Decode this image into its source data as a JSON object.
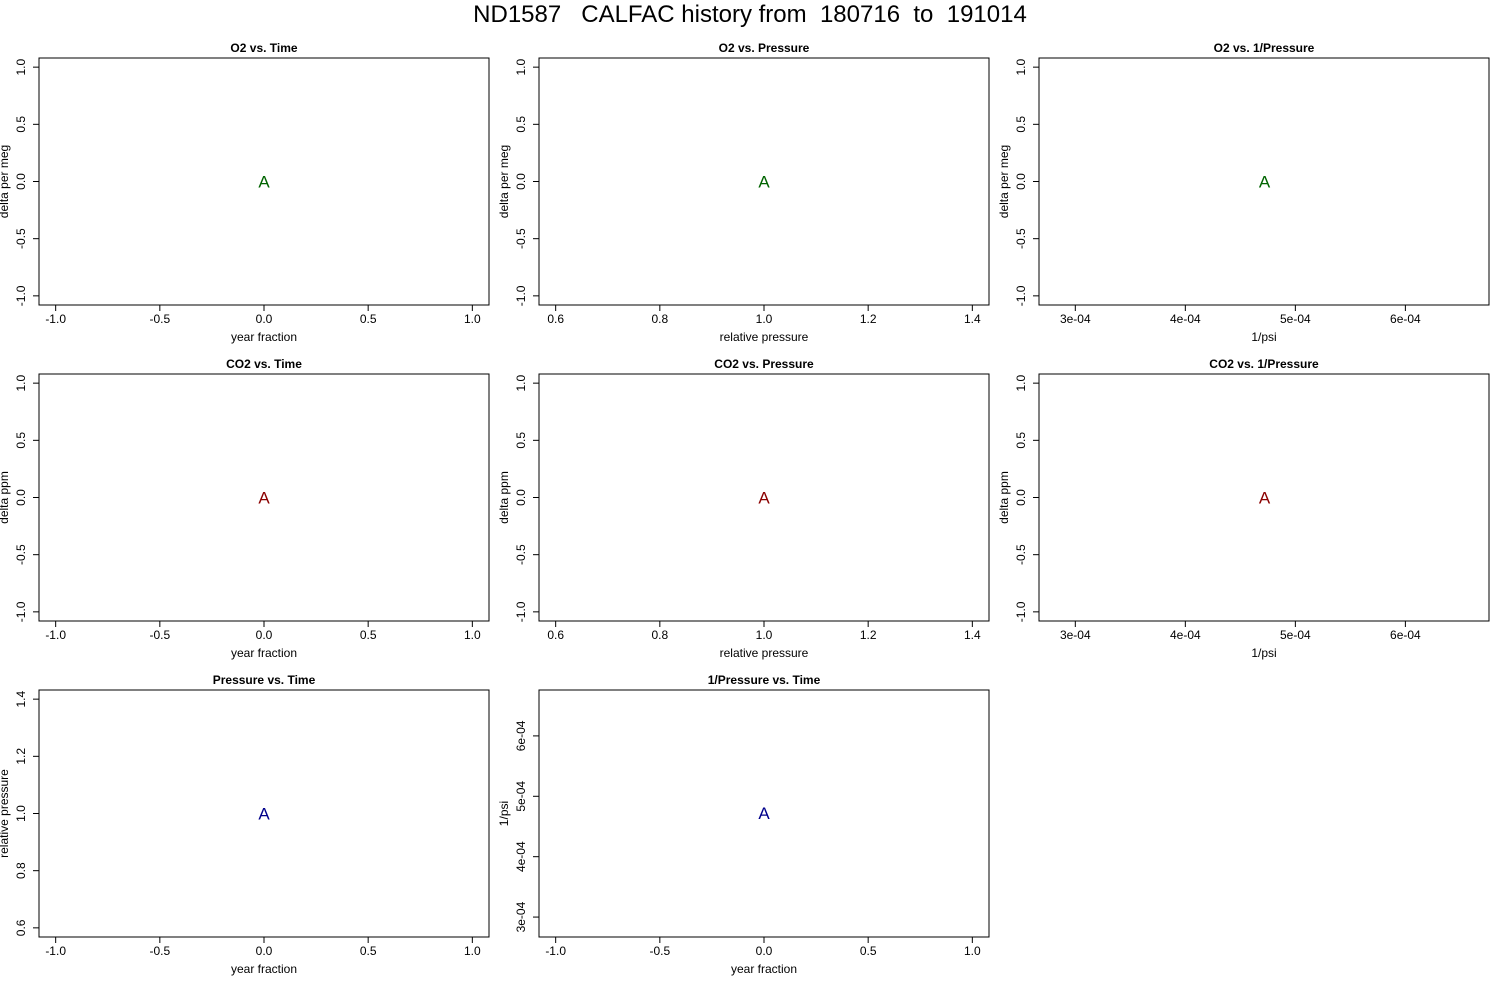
{
  "page_title": "ND1587   CALFAC history from  180716  to  191014",
  "colors": {
    "o2": "#006400",
    "co2": "#8b0000",
    "pressure": "#00008b",
    "axis": "#000000"
  },
  "chart_data": [
    {
      "type": "scatter",
      "title": "O2 vs. Time",
      "xlabel": "year fraction",
      "ylabel": "delta per meg",
      "xlim": [
        -1.08,
        1.08
      ],
      "ylim": [
        -1.08,
        1.08
      ],
      "xticks": [
        -1.0,
        -0.5,
        0.0,
        0.5,
        1.0
      ],
      "xtick_labels": [
        "-1.0",
        "-0.5",
        "0.0",
        "0.5",
        "1.0"
      ],
      "yticks": [
        -1.0,
        -0.5,
        0.0,
        0.5,
        1.0
      ],
      "ytick_labels": [
        "-1.0",
        "-0.5",
        "0.0",
        "0.5",
        "1.0"
      ],
      "points": [
        {
          "x": 0.0,
          "y": 0.0,
          "label": "A"
        }
      ],
      "color_key": "o2"
    },
    {
      "type": "scatter",
      "title": "O2 vs. Pressure",
      "xlabel": "relative pressure",
      "ylabel": "delta per meg",
      "xlim": [
        0.568,
        1.432
      ],
      "ylim": [
        -1.08,
        1.08
      ],
      "xticks": [
        0.6,
        0.8,
        1.0,
        1.2,
        1.4
      ],
      "xtick_labels": [
        "0.6",
        "0.8",
        "1.0",
        "1.2",
        "1.4"
      ],
      "yticks": [
        -1.0,
        -0.5,
        0.0,
        0.5,
        1.0
      ],
      "ytick_labels": [
        "-1.0",
        "-0.5",
        "0.0",
        "0.5",
        "1.0"
      ],
      "points": [
        {
          "x": 1.0,
          "y": 0.0,
          "label": "A"
        }
      ],
      "color_key": "o2"
    },
    {
      "type": "scatter",
      "title": "O2 vs. 1/Pressure",
      "xlabel": "1/psi",
      "ylabel": "delta per meg",
      "xlim": [
        0.000267,
        0.000676
      ],
      "ylim": [
        -1.08,
        1.08
      ],
      "xticks": [
        0.0003,
        0.0004,
        0.0005,
        0.0006
      ],
      "xtick_labels": [
        "3e-04",
        "4e-04",
        "5e-04",
        "6e-04"
      ],
      "yticks": [
        -1.0,
        -0.5,
        0.0,
        0.5,
        1.0
      ],
      "ytick_labels": [
        "-1.0",
        "-0.5",
        "0.0",
        "0.5",
        "1.0"
      ],
      "points": [
        {
          "x": 0.000472,
          "y": 0.0,
          "label": "A"
        }
      ],
      "color_key": "o2"
    },
    {
      "type": "scatter",
      "title": "CO2 vs. Time",
      "xlabel": "year fraction",
      "ylabel": "delta ppm",
      "xlim": [
        -1.08,
        1.08
      ],
      "ylim": [
        -1.08,
        1.08
      ],
      "xticks": [
        -1.0,
        -0.5,
        0.0,
        0.5,
        1.0
      ],
      "xtick_labels": [
        "-1.0",
        "-0.5",
        "0.0",
        "0.5",
        "1.0"
      ],
      "yticks": [
        -1.0,
        -0.5,
        0.0,
        0.5,
        1.0
      ],
      "ytick_labels": [
        "-1.0",
        "-0.5",
        "0.0",
        "0.5",
        "1.0"
      ],
      "points": [
        {
          "x": 0.0,
          "y": 0.0,
          "label": "A"
        }
      ],
      "color_key": "co2"
    },
    {
      "type": "scatter",
      "title": "CO2 vs. Pressure",
      "xlabel": "relative pressure",
      "ylabel": "delta ppm",
      "xlim": [
        0.568,
        1.432
      ],
      "ylim": [
        -1.08,
        1.08
      ],
      "xticks": [
        0.6,
        0.8,
        1.0,
        1.2,
        1.4
      ],
      "xtick_labels": [
        "0.6",
        "0.8",
        "1.0",
        "1.2",
        "1.4"
      ],
      "yticks": [
        -1.0,
        -0.5,
        0.0,
        0.5,
        1.0
      ],
      "ytick_labels": [
        "-1.0",
        "-0.5",
        "0.0",
        "0.5",
        "1.0"
      ],
      "points": [
        {
          "x": 1.0,
          "y": 0.0,
          "label": "A"
        }
      ],
      "color_key": "co2"
    },
    {
      "type": "scatter",
      "title": "CO2 vs. 1/Pressure",
      "xlabel": "1/psi",
      "ylabel": "delta ppm",
      "xlim": [
        0.000267,
        0.000676
      ],
      "ylim": [
        -1.08,
        1.08
      ],
      "xticks": [
        0.0003,
        0.0004,
        0.0005,
        0.0006
      ],
      "xtick_labels": [
        "3e-04",
        "4e-04",
        "5e-04",
        "6e-04"
      ],
      "yticks": [
        -1.0,
        -0.5,
        0.0,
        0.5,
        1.0
      ],
      "ytick_labels": [
        "-1.0",
        "-0.5",
        "0.0",
        "0.5",
        "1.0"
      ],
      "points": [
        {
          "x": 0.000472,
          "y": 0.0,
          "label": "A"
        }
      ],
      "color_key": "co2"
    },
    {
      "type": "scatter",
      "title": "Pressure vs. Time",
      "xlabel": "year fraction",
      "ylabel": "relative pressure",
      "xlim": [
        -1.08,
        1.08
      ],
      "ylim": [
        0.568,
        1.432
      ],
      "xticks": [
        -1.0,
        -0.5,
        0.0,
        0.5,
        1.0
      ],
      "xtick_labels": [
        "-1.0",
        "-0.5",
        "0.0",
        "0.5",
        "1.0"
      ],
      "yticks": [
        0.6,
        0.8,
        1.0,
        1.2,
        1.4
      ],
      "ytick_labels": [
        "0.6",
        "0.8",
        "1.0",
        "1.2",
        "1.4"
      ],
      "points": [
        {
          "x": 0.0,
          "y": 1.0,
          "label": "A"
        }
      ],
      "color_key": "pressure"
    },
    {
      "type": "scatter",
      "title": "1/Pressure vs. Time",
      "xlabel": "year fraction",
      "ylabel": "1/psi",
      "xlim": [
        -1.08,
        1.08
      ],
      "ylim": [
        0.000267,
        0.000676
      ],
      "xticks": [
        -1.0,
        -0.5,
        0.0,
        0.5,
        1.0
      ],
      "xtick_labels": [
        "-1.0",
        "-0.5",
        "0.0",
        "0.5",
        "1.0"
      ],
      "yticks": [
        0.0003,
        0.0004,
        0.0005,
        0.0006
      ],
      "ytick_labels": [
        "3e-04",
        "4e-04",
        "5e-04",
        "6e-04"
      ],
      "points": [
        {
          "x": 0.0,
          "y": 0.000472,
          "label": "A"
        }
      ],
      "color_key": "pressure"
    }
  ]
}
